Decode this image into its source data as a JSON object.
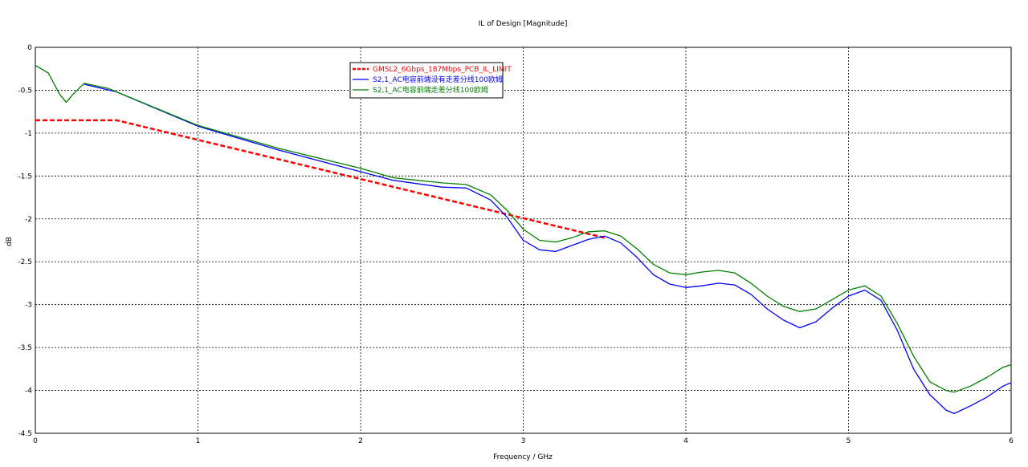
{
  "chart_data": {
    "type": "line",
    "title": "IL of Design [Magnitude]",
    "xlabel": "Frequency / GHz",
    "ylabel": "dB",
    "xlim": [
      0,
      6
    ],
    "ylim": [
      -4.5,
      0
    ],
    "x_ticks": [
      "0",
      "1",
      "2",
      "3",
      "4",
      "5",
      "6"
    ],
    "y_ticks": [
      "0",
      "-0.5",
      "-1",
      "-1.5",
      "-2",
      "-2.5",
      "-3",
      "-3.5",
      "-4",
      "-4.5"
    ],
    "grid": true,
    "legend_position": "top-center",
    "series": [
      {
        "name": "GMSL2_6Gbps_187Mbps_PCB_IL_LIMIT",
        "color": "#ff0000",
        "style": "dashed",
        "points": [
          [
            0,
            -0.85
          ],
          [
            0.5,
            -0.85
          ],
          [
            3.5,
            -2.22
          ]
        ]
      },
      {
        "name": "S2,1_AC电容前端没有走差分线100欧姆",
        "color": "#0000ff",
        "style": "solid",
        "points": [
          [
            0.3,
            -0.43
          ],
          [
            0.5,
            -0.52
          ],
          [
            1.0,
            -0.92
          ],
          [
            1.5,
            -1.2
          ],
          [
            2.0,
            -1.45
          ],
          [
            2.2,
            -1.55
          ],
          [
            2.5,
            -1.63
          ],
          [
            2.65,
            -1.64
          ],
          [
            2.8,
            -1.78
          ],
          [
            2.9,
            -1.98
          ],
          [
            3.0,
            -2.25
          ],
          [
            3.1,
            -2.36
          ],
          [
            3.2,
            -2.38
          ],
          [
            3.3,
            -2.31
          ],
          [
            3.4,
            -2.24
          ],
          [
            3.5,
            -2.2
          ],
          [
            3.6,
            -2.28
          ],
          [
            3.7,
            -2.45
          ],
          [
            3.8,
            -2.65
          ],
          [
            3.9,
            -2.76
          ],
          [
            4.0,
            -2.8
          ],
          [
            4.1,
            -2.78
          ],
          [
            4.2,
            -2.75
          ],
          [
            4.3,
            -2.77
          ],
          [
            4.4,
            -2.88
          ],
          [
            4.5,
            -3.05
          ],
          [
            4.6,
            -3.18
          ],
          [
            4.7,
            -3.27
          ],
          [
            4.8,
            -3.2
          ],
          [
            4.9,
            -3.04
          ],
          [
            5.0,
            -2.9
          ],
          [
            5.1,
            -2.83
          ],
          [
            5.2,
            -2.95
          ],
          [
            5.3,
            -3.3
          ],
          [
            5.4,
            -3.75
          ],
          [
            5.5,
            -4.05
          ],
          [
            5.6,
            -4.23
          ],
          [
            5.65,
            -4.27
          ],
          [
            5.75,
            -4.18
          ],
          [
            5.85,
            -4.08
          ],
          [
            5.95,
            -3.95
          ],
          [
            6.0,
            -3.91
          ]
        ]
      },
      {
        "name": "S2,1_AC电容前端走差分线100欧姆",
        "color": "#008000",
        "style": "solid",
        "points": [
          [
            0.0,
            -0.21
          ],
          [
            0.08,
            -0.3
          ],
          [
            0.15,
            -0.55
          ],
          [
            0.19,
            -0.64
          ],
          [
            0.23,
            -0.55
          ],
          [
            0.3,
            -0.42
          ],
          [
            0.45,
            -0.48
          ],
          [
            0.5,
            -0.52
          ],
          [
            1.0,
            -0.91
          ],
          [
            1.5,
            -1.18
          ],
          [
            2.0,
            -1.41
          ],
          [
            2.2,
            -1.52
          ],
          [
            2.5,
            -1.58
          ],
          [
            2.65,
            -1.6
          ],
          [
            2.8,
            -1.72
          ],
          [
            2.9,
            -1.9
          ],
          [
            3.0,
            -2.12
          ],
          [
            3.1,
            -2.25
          ],
          [
            3.2,
            -2.27
          ],
          [
            3.3,
            -2.22
          ],
          [
            3.4,
            -2.15
          ],
          [
            3.5,
            -2.14
          ],
          [
            3.6,
            -2.2
          ],
          [
            3.7,
            -2.35
          ],
          [
            3.8,
            -2.53
          ],
          [
            3.9,
            -2.63
          ],
          [
            4.0,
            -2.65
          ],
          [
            4.1,
            -2.62
          ],
          [
            4.2,
            -2.6
          ],
          [
            4.3,
            -2.63
          ],
          [
            4.4,
            -2.75
          ],
          [
            4.5,
            -2.9
          ],
          [
            4.6,
            -3.02
          ],
          [
            4.7,
            -3.08
          ],
          [
            4.8,
            -3.05
          ],
          [
            4.9,
            -2.94
          ],
          [
            5.0,
            -2.83
          ],
          [
            5.1,
            -2.78
          ],
          [
            5.2,
            -2.9
          ],
          [
            5.3,
            -3.22
          ],
          [
            5.4,
            -3.6
          ],
          [
            5.5,
            -3.9
          ],
          [
            5.6,
            -4.0
          ],
          [
            5.65,
            -4.02
          ],
          [
            5.75,
            -3.95
          ],
          [
            5.85,
            -3.85
          ],
          [
            5.95,
            -3.73
          ],
          [
            6.0,
            -3.7
          ]
        ]
      }
    ]
  }
}
